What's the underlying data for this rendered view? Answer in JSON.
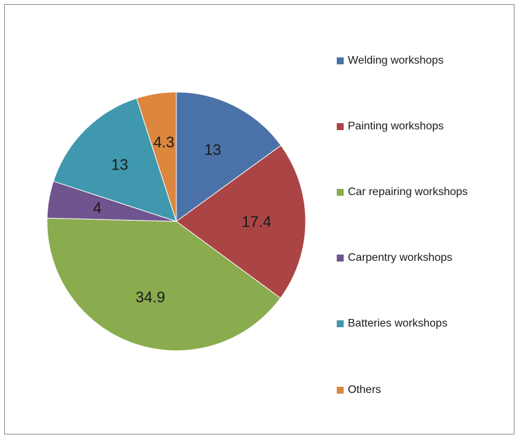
{
  "chart_data": {
    "type": "pie",
    "title": "",
    "legend_position": "right",
    "categories": [
      "Welding workshops",
      "Painting workshops",
      "Car repairing workshops",
      "Carpentry workshops",
      "Batteries workshops",
      "Others"
    ],
    "values": [
      13,
      17.4,
      34.9,
      4,
      13,
      4.3
    ],
    "data_labels": [
      "13",
      "17.4",
      "34.9",
      "4",
      "13",
      "4.3"
    ],
    "colors": [
      "#4a72a9",
      "#ab4545",
      "#8aab4e",
      "#6f548f",
      "#4098ae",
      "#dc863e"
    ]
  }
}
